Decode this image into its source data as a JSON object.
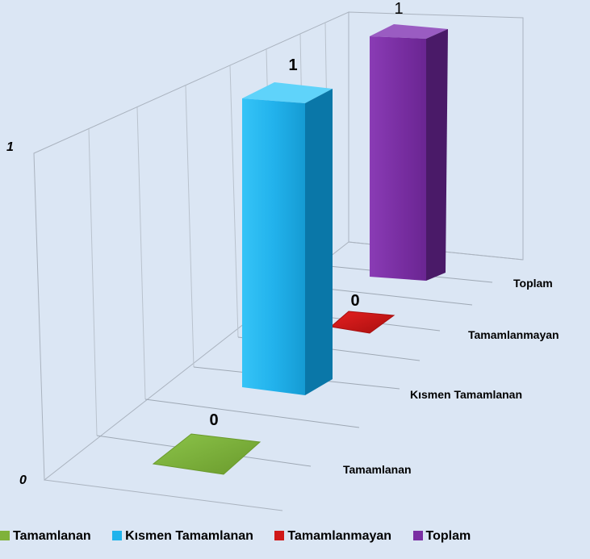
{
  "chart_data": {
    "type": "bar",
    "categories": [
      "Tamamlanan",
      "Kısmen Tamamlanan",
      "Tamamlanmayan",
      "Toplam"
    ],
    "values": [
      0,
      1,
      0,
      1
    ],
    "data_labels": [
      "0",
      "1",
      "0",
      "1"
    ],
    "z_ticks": [
      "0",
      "1"
    ],
    "ylim": [
      0,
      1
    ],
    "grid": true,
    "legend_position": "bottom",
    "colors": {
      "Tamamlanan": "#7fb23a",
      "Kısmen Tamamlanan": "#1fb3ec",
      "Tamamlanmayan": "#d01818",
      "Toplam": "#7a2fa3"
    },
    "legend": [
      "Tamamlanan",
      "Kısmen Tamamlanan",
      "Tamamlanmayan",
      "Toplam"
    ]
  }
}
